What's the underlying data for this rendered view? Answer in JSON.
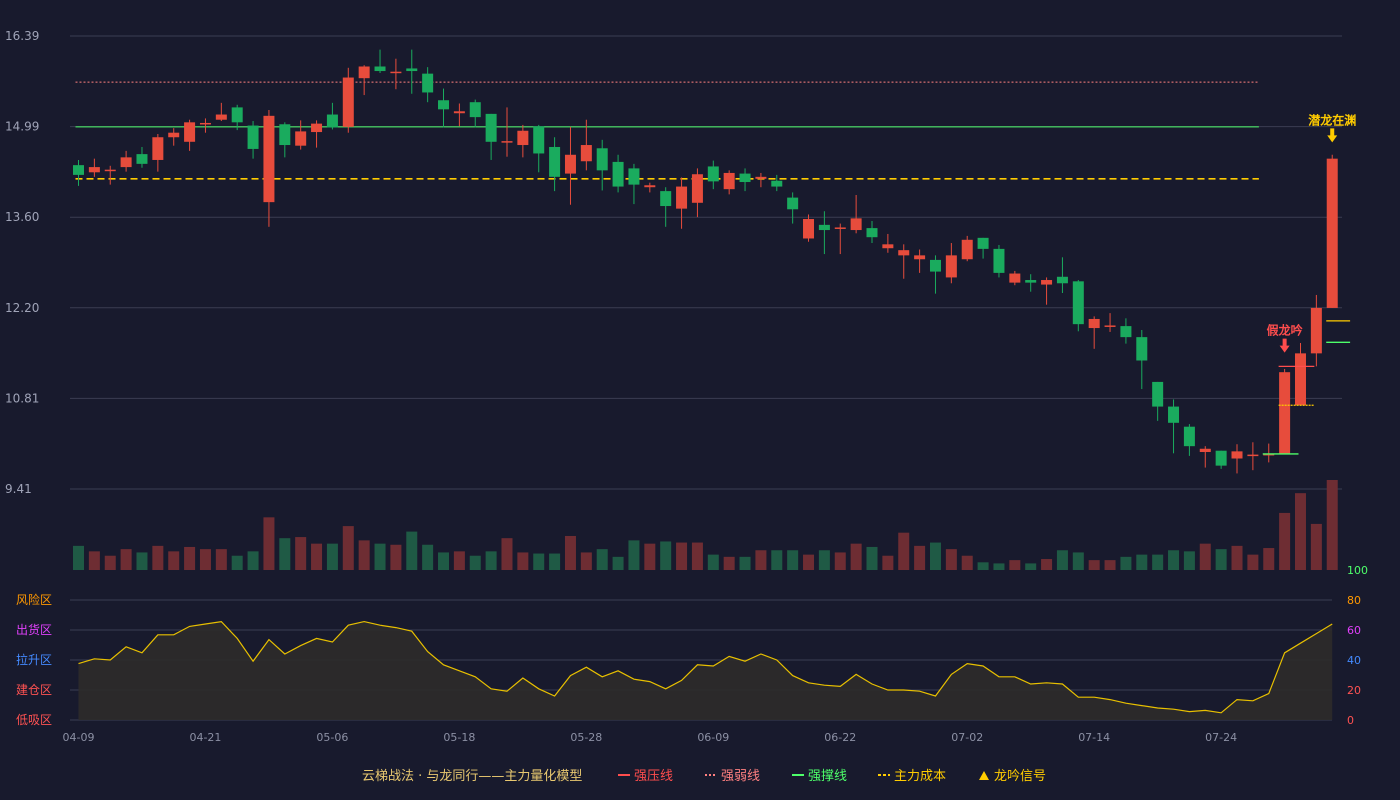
{
  "chart_data": {
    "type": "candlestick",
    "colors": {
      "up": "#e74c3c",
      "down": "#1aab5e",
      "background": "#181a2d",
      "grid": "#3a3d52",
      "pressure": "#ff4d4d",
      "weak": "#ff8080",
      "support": "#4dff6a",
      "cost": "#ffcc00",
      "osc_line": "#e8c000",
      "osc_fill": "#2e2b2a"
    },
    "price_axis": {
      "ticks": [
        "16.39",
        "14.99",
        "13.60",
        "12.20",
        "10.81",
        "9.41"
      ],
      "min": 9.41,
      "max": 16.39
    },
    "x_tick_labels": [
      {
        "i": 0,
        "label": "04-09"
      },
      {
        "i": 8,
        "label": "04-21"
      },
      {
        "i": 16,
        "label": "05-06"
      },
      {
        "i": 24,
        "label": "05-18"
      },
      {
        "i": 32,
        "label": "05-28"
      },
      {
        "i": 40,
        "label": "06-09"
      },
      {
        "i": 48,
        "label": "06-22"
      },
      {
        "i": 56,
        "label": "07-02"
      },
      {
        "i": 64,
        "label": "07-14"
      },
      {
        "i": 72,
        "label": "07-24"
      }
    ],
    "candles": [
      [
        14.4,
        14.25,
        14.48,
        14.08
      ],
      [
        14.29,
        14.37,
        14.5,
        14.22
      ],
      [
        14.31,
        14.33,
        14.39,
        14.1
      ],
      [
        14.37,
        14.52,
        14.62,
        14.3
      ],
      [
        14.57,
        14.42,
        14.68,
        14.36
      ],
      [
        14.48,
        14.83,
        14.88,
        14.3
      ],
      [
        14.83,
        14.9,
        14.97,
        14.7
      ],
      [
        14.76,
        15.06,
        15.1,
        14.62
      ],
      [
        15.04,
        15.05,
        15.12,
        14.9
      ],
      [
        15.1,
        15.18,
        15.36,
        15.08
      ],
      [
        15.29,
        15.06,
        15.33,
        14.94
      ],
      [
        15.01,
        14.65,
        15.08,
        14.5
      ],
      [
        13.83,
        15.16,
        15.25,
        13.45
      ],
      [
        15.03,
        14.71,
        15.06,
        14.52
      ],
      [
        14.7,
        14.92,
        15.09,
        14.64
      ],
      [
        14.91,
        15.04,
        15.09,
        14.67
      ],
      [
        15.18,
        14.98,
        15.36,
        14.95
      ],
      [
        14.99,
        15.75,
        15.9,
        14.9
      ],
      [
        15.74,
        15.92,
        15.94,
        15.48
      ],
      [
        15.92,
        15.85,
        16.18,
        15.82
      ],
      [
        15.82,
        15.84,
        16.04,
        15.57
      ],
      [
        15.89,
        15.85,
        16.18,
        15.5
      ],
      [
        15.81,
        15.52,
        15.91,
        15.37
      ],
      [
        15.4,
        15.26,
        15.58,
        14.98
      ],
      [
        15.2,
        15.23,
        15.35,
        15.0
      ],
      [
        15.37,
        15.14,
        15.41,
        14.98
      ],
      [
        15.19,
        14.76,
        15.19,
        14.48
      ],
      [
        14.76,
        14.77,
        15.29,
        14.53
      ],
      [
        14.71,
        14.93,
        15.02,
        14.52
      ],
      [
        15.0,
        14.58,
        15.02,
        14.29
      ],
      [
        14.68,
        14.22,
        14.83,
        14.0
      ],
      [
        14.27,
        14.56,
        14.99,
        13.79
      ],
      [
        14.46,
        14.71,
        15.1,
        14.32
      ],
      [
        14.66,
        14.32,
        14.79,
        14.01
      ],
      [
        14.45,
        14.07,
        14.56,
        13.98
      ],
      [
        14.35,
        14.1,
        14.42,
        13.8
      ],
      [
        14.06,
        14.09,
        14.13,
        13.98
      ],
      [
        14.0,
        13.77,
        14.06,
        13.45
      ],
      [
        13.73,
        14.07,
        14.21,
        13.42
      ],
      [
        13.82,
        14.26,
        14.35,
        13.6
      ],
      [
        14.38,
        14.15,
        14.47,
        14.03
      ],
      [
        14.03,
        14.28,
        14.32,
        13.95
      ],
      [
        14.27,
        14.14,
        14.35,
        14.0
      ],
      [
        14.19,
        14.22,
        14.28,
        14.06
      ],
      [
        14.16,
        14.07,
        14.25,
        14.0
      ],
      [
        13.9,
        13.72,
        13.98,
        13.5
      ],
      [
        13.27,
        13.57,
        13.64,
        13.22
      ],
      [
        13.48,
        13.4,
        13.69,
        13.03
      ],
      [
        13.44,
        13.44,
        13.5,
        13.03
      ],
      [
        13.4,
        13.58,
        13.94,
        13.35
      ],
      [
        13.43,
        13.29,
        13.54,
        13.2
      ],
      [
        13.12,
        13.18,
        13.34,
        13.05
      ],
      [
        13.01,
        13.09,
        13.18,
        12.65
      ],
      [
        12.95,
        13.01,
        13.1,
        12.74
      ],
      [
        12.94,
        12.76,
        13.01,
        12.42
      ],
      [
        12.67,
        13.01,
        13.2,
        12.58
      ],
      [
        12.95,
        13.25,
        13.31,
        12.92
      ],
      [
        13.28,
        13.11,
        13.28,
        12.96
      ],
      [
        13.11,
        12.74,
        13.17,
        12.67
      ],
      [
        12.59,
        12.73,
        12.77,
        12.55
      ],
      [
        12.63,
        12.59,
        12.72,
        12.45
      ],
      [
        12.56,
        12.63,
        12.67,
        12.25
      ],
      [
        12.68,
        12.58,
        12.98,
        12.43
      ],
      [
        12.61,
        11.95,
        12.63,
        11.84
      ],
      [
        11.89,
        12.03,
        12.07,
        11.57
      ],
      [
        11.93,
        11.93,
        12.12,
        11.83
      ],
      [
        11.92,
        11.75,
        12.04,
        11.65
      ],
      [
        11.75,
        11.39,
        11.86,
        10.95
      ],
      [
        11.06,
        10.68,
        11.06,
        10.46
      ],
      [
        10.68,
        10.43,
        10.79,
        9.96
      ],
      [
        10.37,
        10.07,
        10.41,
        9.92
      ],
      [
        9.98,
        10.03,
        10.07,
        9.74
      ],
      [
        10.0,
        9.77,
        10.0,
        9.72
      ],
      [
        9.88,
        9.99,
        10.1,
        9.65
      ],
      [
        9.92,
        9.94,
        10.13,
        9.7
      ],
      [
        9.95,
        9.95,
        10.11,
        9.82
      ],
      [
        9.95,
        11.21,
        11.26,
        9.95
      ],
      [
        10.7,
        11.5,
        11.66,
        10.7
      ],
      [
        11.5,
        12.2,
        12.4,
        11.3
      ],
      [
        12.2,
        14.5,
        14.56,
        12.2
      ]
    ],
    "volumes": [
      22,
      17,
      13,
      19,
      16,
      22,
      17,
      21,
      19,
      19,
      13,
      17,
      48,
      29,
      30,
      24,
      24,
      40,
      27,
      24,
      23,
      35,
      23,
      16,
      17,
      13,
      17,
      29,
      16,
      15,
      15,
      31,
      16,
      19,
      12,
      27,
      24,
      26,
      25,
      25,
      14,
      12,
      12,
      18,
      18,
      18,
      14,
      18,
      16,
      24,
      21,
      13,
      34,
      22,
      25,
      19,
      13,
      7,
      6,
      9,
      6,
      10,
      18,
      16,
      9,
      9,
      12,
      14,
      14,
      18,
      17,
      24,
      19,
      22,
      14,
      20,
      52,
      70,
      42,
      82
    ],
    "oscillator": {
      "ticks": [
        "100",
        "80",
        "60",
        "40",
        "20",
        "0"
      ],
      "tick_colors": [
        "#4dff6a",
        "#ff9800",
        "#e040fb",
        "#448aff",
        "#ff5252",
        "#ff5252"
      ],
      "zones": [
        {
          "label": "风险区",
          "color": "#ff9800"
        },
        {
          "label": "出货区",
          "color": "#e040fb"
        },
        {
          "label": "拉升区",
          "color": "#448aff"
        },
        {
          "label": "建仓区",
          "color": "#ff5252"
        },
        {
          "label": "低吸区",
          "color": "#ff5252"
        }
      ],
      "values": [
        47,
        51,
        50,
        61,
        56,
        71,
        71,
        78,
        80,
        82,
        68,
        49,
        67,
        55,
        62,
        68,
        65,
        79,
        82,
        79,
        77,
        74,
        57,
        46,
        41,
        36,
        26,
        24,
        35,
        26,
        20,
        37,
        44,
        36,
        41,
        34,
        32,
        26,
        33,
        46,
        45,
        53,
        49,
        55,
        50,
        37,
        31,
        29,
        28,
        38,
        30,
        25,
        25,
        24,
        20,
        38,
        47,
        45,
        36,
        36,
        30,
        31,
        30,
        19,
        19,
        17,
        14,
        12,
        10,
        9,
        7,
        8,
        6,
        17,
        16,
        22,
        56,
        64,
        72,
        80
      ]
    },
    "levels": [
      {
        "name": "强弱线",
        "value": 15.68,
        "style": "dotted",
        "color": "#ff8080"
      },
      {
        "name": "强撑线",
        "value": 14.99,
        "style": "solid",
        "color": "#4dff6a"
      },
      {
        "name": "主力成本",
        "value": 14.19,
        "style": "dashed",
        "color": "#ffcc00"
      }
    ],
    "end_markers": [
      {
        "from": 75,
        "to": 77,
        "value": 9.95,
        "color": "#4dff6a",
        "dash": false
      },
      {
        "from": 76,
        "to": 78,
        "value": 10.7,
        "color": "#ffcc00",
        "dash": true
      },
      {
        "from": 76,
        "to": 78,
        "value": 11.3,
        "color": "#ff4d4d",
        "dash": false
      },
      {
        "from": 79,
        "to": 80,
        "value": 11.67,
        "color": "#4dff6a",
        "dash": false
      },
      {
        "from": 79,
        "to": 80,
        "value": 12.0,
        "color": "#ffcc00",
        "dash": false
      }
    ],
    "signals": [
      {
        "i": 76,
        "text": "假龙吟",
        "color": "#ff4d4d",
        "value": 11.45
      },
      {
        "i": 79,
        "text": "潜龙在渊",
        "color": "#ffcc00",
        "value": 14.69
      }
    ],
    "legend": {
      "title": "云梯战法 · 与龙同行——主力量化模型",
      "items": [
        {
          "text": "强压线",
          "color": "#ff4d4d",
          "symbol": "line"
        },
        {
          "text": "强弱线",
          "color": "#ff8080",
          "symbol": "dotted"
        },
        {
          "text": "强撑线",
          "color": "#4dff6a",
          "symbol": "line"
        },
        {
          "text": "主力成本",
          "color": "#ffcc00",
          "symbol": "dashed"
        },
        {
          "text": "龙吟信号",
          "color": "#ffcc00",
          "symbol": "triangle"
        }
      ]
    }
  }
}
